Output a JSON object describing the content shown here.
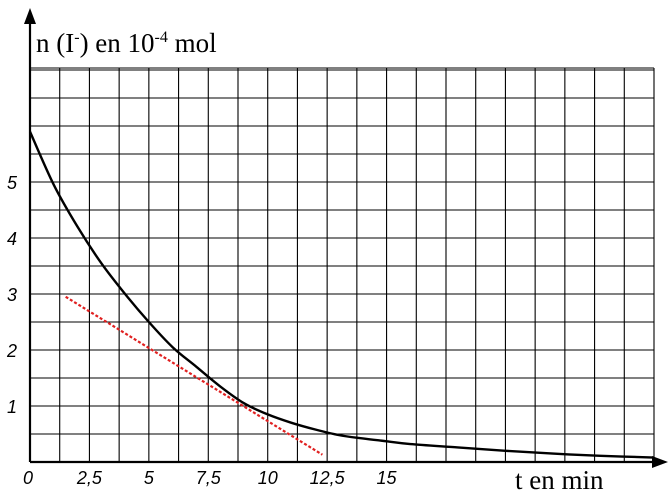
{
  "chart_data": {
    "type": "line",
    "ylabel": {
      "prefix": "n (I",
      "sup1": "-",
      "middle": ") en 10",
      "sup2": "-4",
      "suffix": " mol"
    },
    "xlabel": "t en min",
    "x_tick_labels": [
      "0",
      "2,5",
      "5",
      "7,5",
      "10",
      "12,5",
      "15"
    ],
    "x_tick_values": [
      0,
      2.5,
      5,
      7.5,
      10,
      12.5,
      15
    ],
    "y_tick_labels": [
      "1",
      "2",
      "3",
      "4",
      "5"
    ],
    "y_tick_values": [
      1,
      2,
      3,
      4,
      5
    ],
    "xlim": [
      0,
      26.25
    ],
    "ylim": [
      0,
      7
    ],
    "grid": true,
    "grid_step_x": 1.25,
    "grid_step_y": 0.5,
    "series": [
      {
        "kind": "curve",
        "color": "#000000",
        "x": [
          0,
          1,
          2,
          3,
          4,
          5,
          6,
          7,
          8,
          9,
          10,
          11,
          12,
          13,
          14,
          15,
          16,
          18,
          20,
          22,
          24,
          26.25
        ],
        "y": [
          5.9,
          4.95,
          4.2,
          3.55,
          3.0,
          2.5,
          2.05,
          1.7,
          1.35,
          1.05,
          0.85,
          0.7,
          0.58,
          0.48,
          0.42,
          0.37,
          0.32,
          0.26,
          0.2,
          0.15,
          0.11,
          0.08
        ]
      },
      {
        "kind": "tangent",
        "color": "#e02020",
        "dashed": true,
        "x": [
          1.5,
          12.3
        ],
        "y": [
          2.95,
          0.13
        ]
      }
    ]
  }
}
